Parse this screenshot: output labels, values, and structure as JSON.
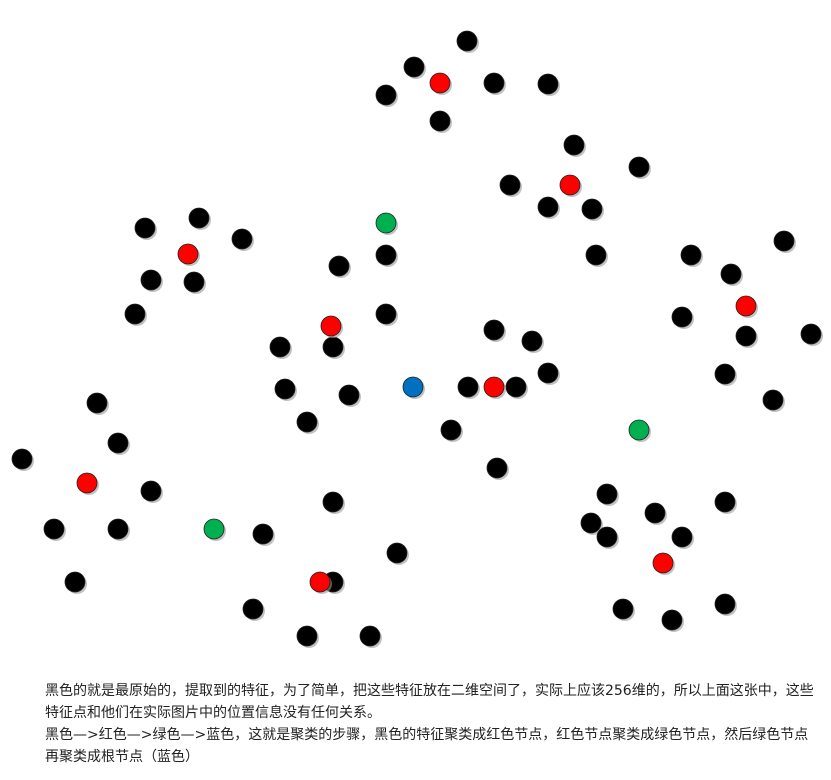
{
  "colors": {
    "black": "#000000",
    "red": "#ff0000",
    "green": "#00b050",
    "blue": "#0070c0",
    "shadow": "#9a9a9a"
  },
  "caption": {
    "line1": "黑色的就是最原始的，提取到的特征，为了简单，把这些特征放在二维空间了，实际上应该256维的，所以上面这张中，这些特征点和他们在实际图片中的位置信息没有任何关系。",
    "line2": "黑色—>红色—>绿色—>蓝色，这就是聚类的步骤，黑色的特征聚类成红色节点，红色节点聚类成绿色节点，然后绿色节点再聚类成根节点（蓝色）"
  }
}
